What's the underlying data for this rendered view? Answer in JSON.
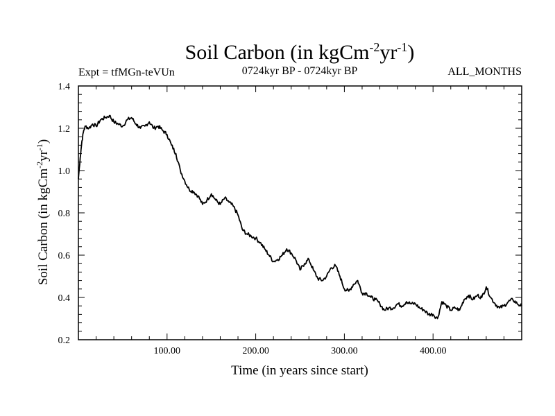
{
  "chart_data": {
    "type": "line",
    "title": {
      "main": "Soil Carbon (in kgCm",
      "sup1": "-2",
      "mid": "yr",
      "sup2": "-1",
      "end": ")"
    },
    "subtitle_left": "Expt = tfMGn-teVUn",
    "subtitle_center": "0724kyr BP - 0724kyr BP",
    "subtitle_right": "ALL_MONTHS",
    "xlabel": "Time (in years since start)",
    "ylabel": {
      "main": "Soil Carbon (in kgCm",
      "sup1": "-2",
      "mid": "yr",
      "sup2": "-1",
      "end": ")"
    },
    "xlim": [
      0,
      500
    ],
    "ylim": [
      0.2,
      1.4
    ],
    "x_major_ticks": [
      100,
      200,
      300,
      400
    ],
    "x_tick_labels": [
      "100.00",
      "200.00",
      "300.00",
      "400.00"
    ],
    "y_major_ticks": [
      0.2,
      0.4,
      0.6,
      0.8,
      1.0,
      1.2,
      1.4
    ],
    "y_tick_labels": [
      "0.2",
      "0.4",
      "0.6",
      "0.8",
      "1.0",
      "1.2",
      "1.4"
    ],
    "line_color": "#000000",
    "series": [
      {
        "x": [
          0,
          2,
          4,
          6,
          8,
          12,
          16,
          20,
          25,
          30,
          35,
          40,
          45,
          50,
          55,
          60,
          65,
          70,
          75,
          80,
          85,
          90,
          95,
          100,
          105,
          110,
          115,
          120,
          125,
          130,
          135,
          140,
          145,
          150,
          155,
          160,
          165,
          170,
          175,
          180,
          185,
          190,
          195,
          200,
          205,
          210,
          215,
          220,
          225,
          230,
          235,
          240,
          245,
          250,
          255,
          260,
          265,
          270,
          275,
          280,
          285,
          290,
          295,
          300,
          305,
          310,
          315,
          320,
          325,
          330,
          335,
          340,
          345,
          350,
          355,
          360,
          365,
          370,
          375,
          380,
          385,
          390,
          395,
          400,
          405,
          410,
          415,
          420,
          425,
          430,
          435,
          440,
          445,
          450,
          455,
          460,
          465,
          470,
          475,
          480,
          485,
          490,
          495,
          500
        ],
        "y": [
          0.96,
          1.06,
          1.14,
          1.19,
          1.21,
          1.2,
          1.22,
          1.21,
          1.24,
          1.25,
          1.26,
          1.23,
          1.22,
          1.21,
          1.24,
          1.25,
          1.22,
          1.2,
          1.21,
          1.23,
          1.2,
          1.21,
          1.19,
          1.17,
          1.12,
          1.08,
          1.0,
          0.95,
          0.91,
          0.9,
          0.88,
          0.84,
          0.86,
          0.89,
          0.86,
          0.84,
          0.87,
          0.85,
          0.83,
          0.79,
          0.72,
          0.7,
          0.69,
          0.68,
          0.66,
          0.63,
          0.6,
          0.57,
          0.58,
          0.6,
          0.63,
          0.61,
          0.58,
          0.53,
          0.56,
          0.58,
          0.53,
          0.49,
          0.48,
          0.5,
          0.54,
          0.55,
          0.5,
          0.44,
          0.43,
          0.46,
          0.48,
          0.42,
          0.42,
          0.4,
          0.39,
          0.37,
          0.34,
          0.35,
          0.35,
          0.37,
          0.36,
          0.38,
          0.37,
          0.37,
          0.35,
          0.34,
          0.32,
          0.32,
          0.3,
          0.38,
          0.36,
          0.34,
          0.35,
          0.34,
          0.39,
          0.41,
          0.39,
          0.41,
          0.4,
          0.45,
          0.4,
          0.37,
          0.35,
          0.36,
          0.38,
          0.39,
          0.37,
          0.36
        ]
      }
    ]
  }
}
